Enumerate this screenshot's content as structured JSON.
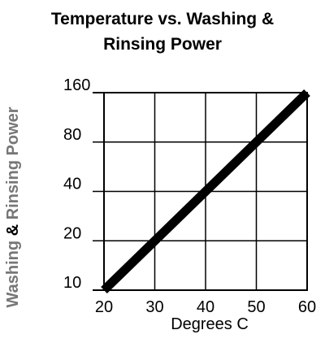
{
  "chart_data": {
    "type": "line",
    "title_line1": "Temperature vs. Washing &",
    "title_line2": "Rinsing Power",
    "xlabel": "Degrees C",
    "ylabel_part1": "Washing ",
    "ylabel_part2": "& ",
    "ylabel_part3": "Rinsing Power",
    "x_ticks": [
      "20",
      "30",
      "40",
      "50",
      "60"
    ],
    "y_ticks": [
      "10",
      "20",
      "40",
      "80",
      "160"
    ],
    "xlim": [
      20,
      60
    ],
    "ylim": [
      10,
      160
    ],
    "y_scale": "log2",
    "grid": true,
    "series": [
      {
        "x": [
          20,
          60
        ],
        "y": [
          10,
          160
        ]
      }
    ],
    "colors": {
      "line": "#000000",
      "grid": "#000000",
      "ylabel_muted": "#777777"
    }
  }
}
